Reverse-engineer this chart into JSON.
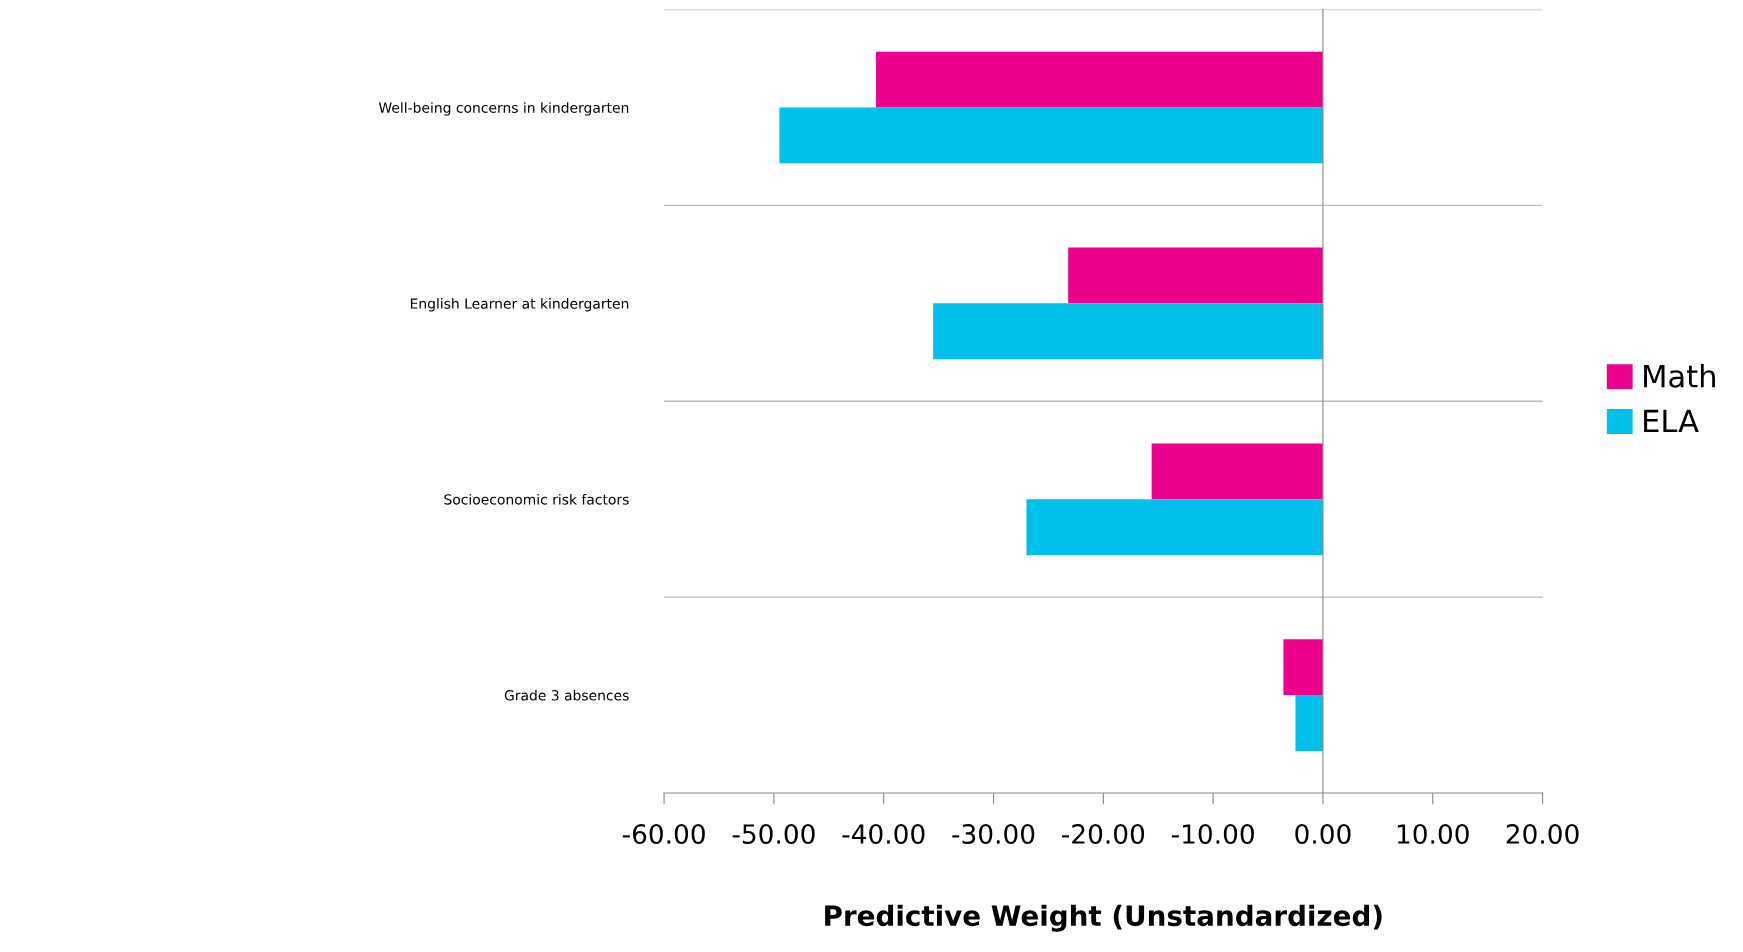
{
  "chart_data": {
    "type": "bar",
    "orientation": "horizontal",
    "xlabel": "Predictive Weight (Unstandardized)",
    "categories": [
      "Well-being concerns in kindergarten",
      "English Learner at kindergarten",
      "Socioeconomic risk factors",
      "Grade 3 absences"
    ],
    "series": [
      {
        "name": "Math",
        "color": "#ec008c",
        "values": [
          -40.7,
          -23.2,
          -15.6,
          -3.6
        ]
      },
      {
        "name": "ELA",
        "color": "#00bfeb",
        "values": [
          -49.5,
          -35.5,
          -27.0,
          -2.5
        ]
      }
    ],
    "xlim": [
      -60,
      20
    ],
    "xticks": [
      {
        "value": -60,
        "label": "-60.00"
      },
      {
        "value": -50,
        "label": "-50.00"
      },
      {
        "value": -40,
        "label": "-40.00"
      },
      {
        "value": -30,
        "label": "-30.00"
      },
      {
        "value": -20,
        "label": "-20.00"
      },
      {
        "value": -10,
        "label": "-10.00"
      },
      {
        "value": 0,
        "label": "0.00"
      },
      {
        "value": 10,
        "label": "10.00"
      },
      {
        "value": 20,
        "label": "20.00"
      }
    ],
    "grid": "y",
    "legend": "right"
  }
}
